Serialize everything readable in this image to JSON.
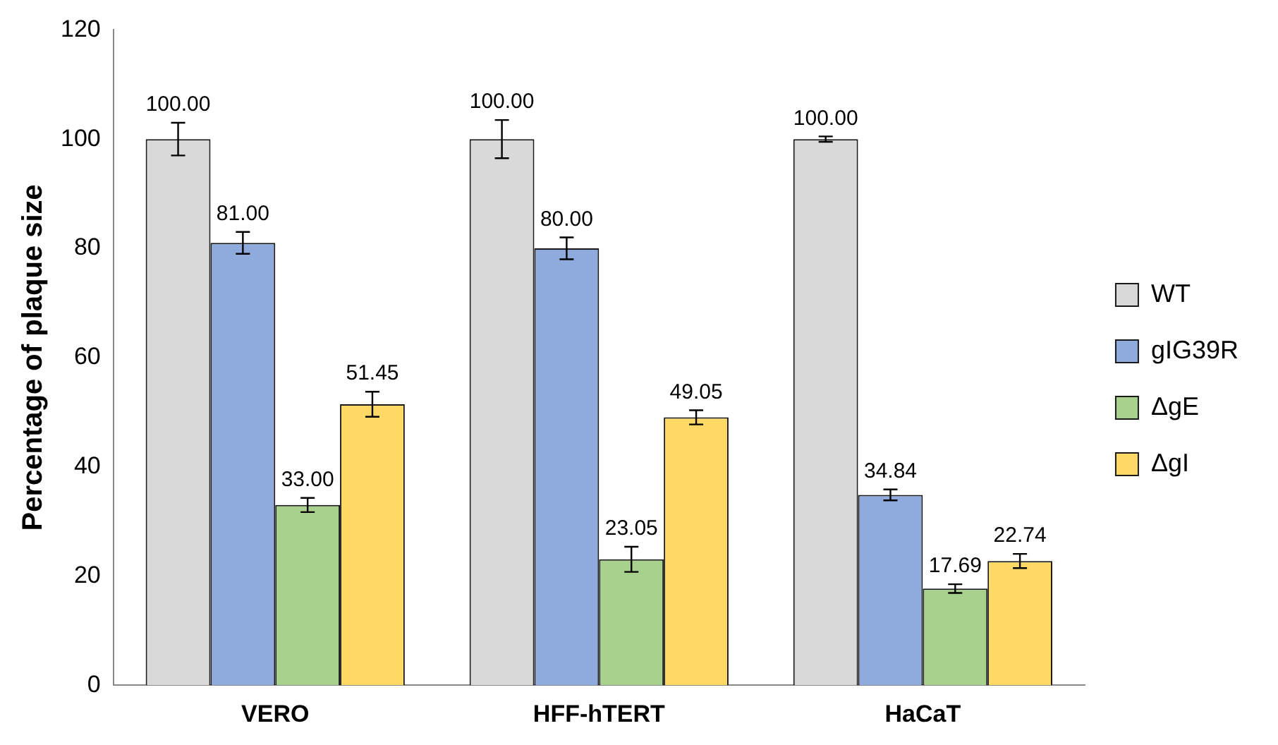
{
  "chart_data": {
    "type": "bar",
    "ylabel": "Percentage of plaque size",
    "categories": [
      "VERO",
      "HFF-hTERT",
      "HaCaT"
    ],
    "series": [
      {
        "name": "WT",
        "color": "#d9d9d9",
        "values": [
          100.0,
          100.0,
          100.0
        ],
        "errors": [
          3,
          3.5,
          0.5
        ],
        "value_labels": [
          "100.00",
          "100.00",
          "100.00"
        ]
      },
      {
        "name": "gIG39R",
        "color": "#8faadc",
        "values": [
          81.0,
          80.0,
          34.84
        ],
        "errors": [
          2,
          2,
          1
        ],
        "value_labels": [
          "81.00",
          "80.00",
          "34.84"
        ]
      },
      {
        "name": "ΔgE",
        "color": "#a9d18e",
        "values": [
          33.0,
          23.05,
          17.69
        ],
        "errors": [
          1.3,
          2.3,
          0.8
        ],
        "value_labels": [
          "33.00",
          "23.05",
          "17.69"
        ]
      },
      {
        "name": "ΔgI",
        "color": "#ffd966",
        "values": [
          51.45,
          49.05,
          22.74
        ],
        "errors": [
          2.3,
          1.3,
          1.3
        ],
        "value_labels": [
          "51.45",
          "49.05",
          "22.74"
        ]
      }
    ],
    "ylim": [
      0,
      120
    ],
    "yticks": [
      0,
      20,
      40,
      60,
      80,
      100,
      120
    ],
    "grid": false,
    "legend": "right"
  }
}
